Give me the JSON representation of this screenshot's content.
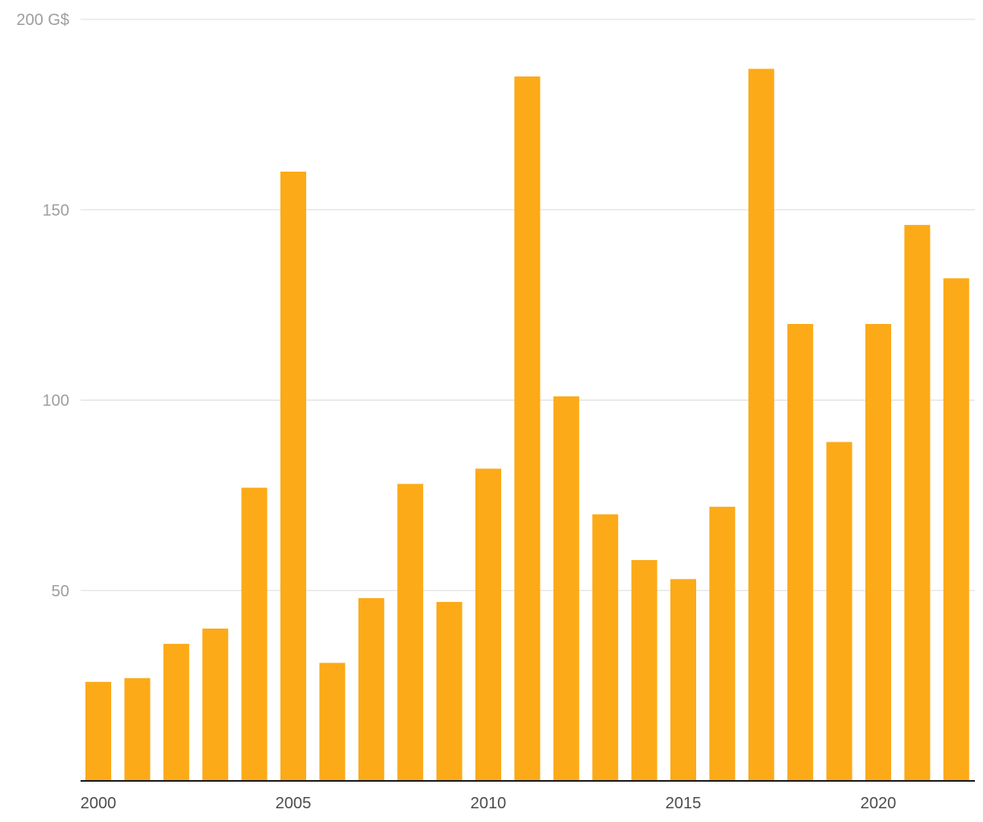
{
  "chart_data": {
    "type": "bar",
    "title": "",
    "xlabel": "",
    "ylabel": "",
    "categories": [
      "2000",
      "2001",
      "2002",
      "2003",
      "2004",
      "2005",
      "2006",
      "2007",
      "2008",
      "2009",
      "2010",
      "2011",
      "2012",
      "2013",
      "2014",
      "2015",
      "2016",
      "2017",
      "2018",
      "2019",
      "2020",
      "2021",
      "2022"
    ],
    "values": [
      26,
      27,
      36,
      40,
      77,
      160,
      31,
      48,
      78,
      47,
      82,
      185,
      101,
      70,
      58,
      53,
      72,
      187,
      120,
      89,
      120,
      146,
      132
    ],
    "ylim": [
      0,
      200
    ],
    "y_ticks": [
      {
        "value": 50,
        "label": "50"
      },
      {
        "value": 100,
        "label": "100"
      },
      {
        "value": 150,
        "label": "150"
      },
      {
        "value": 200,
        "label": "200 G$"
      }
    ],
    "x_tick_labels": [
      "2000",
      "2005",
      "2010",
      "2015",
      "2020"
    ],
    "grid": true,
    "legend": "none",
    "colors": {
      "bar": "#fcaa17",
      "grid": "#dcdcdc",
      "axis": "#1a1a1a",
      "ytick_text": "#9e9e9e",
      "xtick_text": "#4d4d4d"
    }
  }
}
